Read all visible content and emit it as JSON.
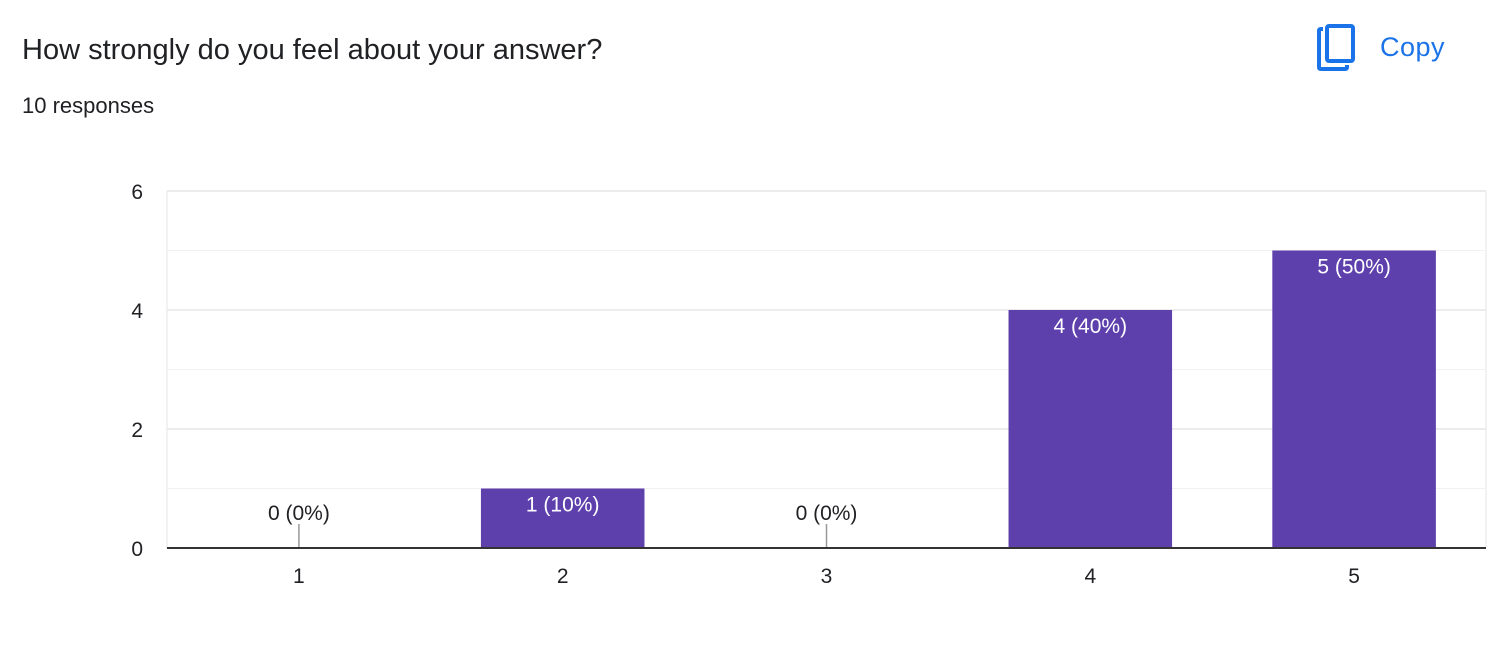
{
  "question": {
    "title": "How strongly do you feel about your answer?",
    "responses": "10 responses"
  },
  "toolbar": {
    "copy_label": "Copy",
    "copy_icon": "copy-icon"
  },
  "colors": {
    "bar": "#5e40ad",
    "accent": "#1a73e8",
    "gridline": "#e6e6e6",
    "axis": "#333333",
    "text": "#202124",
    "data_label_inside": "#ffffff"
  },
  "chart_data": {
    "type": "bar",
    "categories": [
      "1",
      "2",
      "3",
      "4",
      "5"
    ],
    "values": [
      0,
      1,
      0,
      4,
      5
    ],
    "data_labels": [
      "0 (0%)",
      "1 (10%)",
      "0 (0%)",
      "4 (40%)",
      "5 (50%)"
    ],
    "ylim": [
      0,
      6
    ],
    "y_ticks": [
      0,
      2,
      4,
      6
    ],
    "minor_gridlines": [
      1,
      3,
      5
    ],
    "grid": true,
    "title": "",
    "xlabel": "",
    "ylabel": ""
  }
}
